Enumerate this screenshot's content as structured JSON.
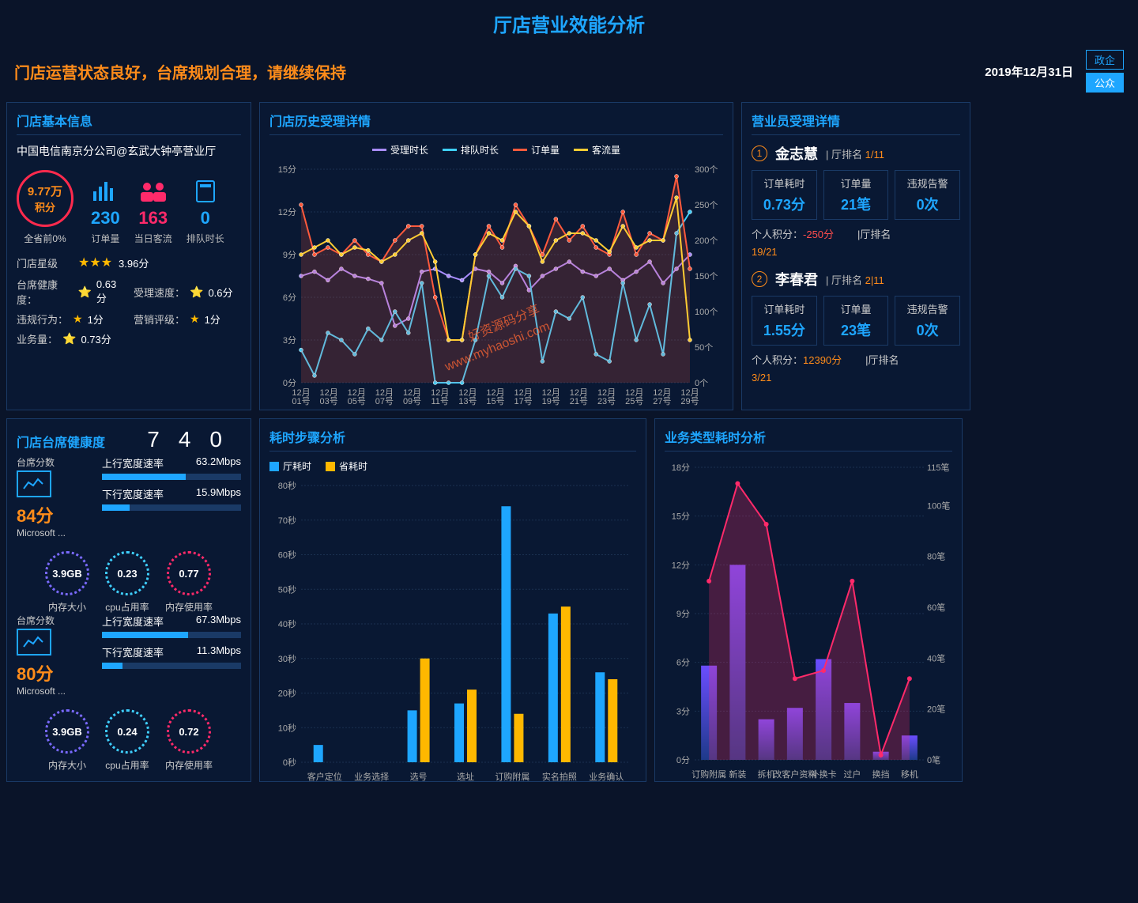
{
  "header": {
    "title": "厅店营业效能分析"
  },
  "subheader": {
    "status": "门店运营状态良好，台席规划合理，请继续保持",
    "date": "2019年12月31日",
    "buttons": {
      "zhengqi": "政企",
      "gongzhong": "公众"
    }
  },
  "storeInfo": {
    "title": "门店基本信息",
    "name": "中国电信南京分公司@玄武大钟亭营业厅",
    "scoreCircle": {
      "value": "9.77万",
      "label": "积分"
    },
    "provincialRank": "全省前0%",
    "metrics": [
      {
        "value": "230",
        "label": "订单量",
        "color": "#1ea6ff"
      },
      {
        "value": "163",
        "label": "当日客流",
        "color": "#ff2a6a"
      },
      {
        "value": "0",
        "label": "排队时长",
        "color": "#1ea6ff"
      }
    ],
    "starRow": {
      "label": "门店星级",
      "stars": 3,
      "score": "3.96分"
    },
    "details": [
      {
        "label": "台席健康度：",
        "icon": "half-star",
        "value": "0.63分"
      },
      {
        "label": "受理速度：",
        "icon": "half-star",
        "value": "0.6分"
      },
      {
        "label": "违规行为：",
        "icon": "star",
        "value": "1分"
      },
      {
        "label": "营销评级：",
        "icon": "star",
        "value": "1分"
      },
      {
        "label": "业务量：",
        "icon": "half-star",
        "value": "0.73分"
      }
    ]
  },
  "historyChart": {
    "title": "门店历史受理详情",
    "legend": [
      {
        "name": "受理时长",
        "color": "#a98cff"
      },
      {
        "name": "排队时长",
        "color": "#3fd0ff"
      },
      {
        "name": "订单量",
        "color": "#ff5a3c"
      },
      {
        "name": "客流量",
        "color": "#ffcc33"
      }
    ],
    "yLeft": {
      "min": 0,
      "max": 15,
      "step": 3,
      "unit": "分"
    },
    "yRight": {
      "min": 0,
      "max": 300,
      "step": 50,
      "unit": "个"
    },
    "xLabels": [
      "12月01号",
      "12月03号",
      "12月05号",
      "12月07号",
      "12月09号",
      "12月11号",
      "12月13号",
      "12月15号",
      "12月17号",
      "12月19号",
      "12月21号",
      "12月23号",
      "12月25号",
      "12月27号",
      "12月29号"
    ],
    "series": {
      "受理时长": [
        7.5,
        7.8,
        7.2,
        8,
        7.5,
        7.3,
        7,
        4,
        4.5,
        7.8,
        8,
        7.5,
        7.2,
        8,
        7.8,
        7,
        8.2,
        6.5,
        7.5,
        8,
        8.5,
        7.8,
        7.5,
        8,
        7.2,
        7.8,
        8.5,
        7,
        8,
        9
      ],
      "排队时长": [
        2.3,
        0.5,
        3.5,
        3,
        2,
        3.8,
        3,
        5,
        3.5,
        7,
        0,
        0,
        0,
        3,
        7.5,
        6,
        8,
        7.5,
        1.5,
        5,
        4.5,
        6,
        2,
        1.5,
        7,
        3,
        5.5,
        2,
        10.5,
        12
      ],
      "订单量": [
        12.5,
        9,
        9.5,
        9,
        10,
        9,
        8.5,
        10,
        11,
        11,
        6,
        3,
        3,
        9,
        11,
        9.5,
        12.5,
        11,
        9,
        11.5,
        10,
        11,
        9.5,
        9,
        12,
        9,
        10.5,
        10,
        14.5,
        8
      ],
      "客流量": [
        9,
        9.5,
        10,
        9,
        9.5,
        9.3,
        8.5,
        9,
        10,
        10.5,
        8.5,
        3,
        3,
        9,
        10.5,
        10,
        12,
        11,
        8.5,
        10,
        10.5,
        10.5,
        10,
        9.2,
        11,
        9.5,
        10,
        10,
        13,
        3
      ]
    }
  },
  "employees": {
    "title": "营业员受理详情",
    "list": [
      {
        "rank": 1,
        "name": "金志慧",
        "rankLabel": "厅排名",
        "rankVal": "1/11",
        "stats": [
          {
            "label": "订单耗时",
            "value": "0.73分"
          },
          {
            "label": "订单量",
            "value": "21笔"
          },
          {
            "label": "违规告警",
            "value": "0次"
          }
        ],
        "points": {
          "label": "个人积分：",
          "value": "-250分",
          "neg": true
        },
        "rank2": {
          "label": "|厅排名",
          "value": "19/21"
        }
      },
      {
        "rank": 2,
        "name": "李春君",
        "rankLabel": "厅排名",
        "rankVal": "2|11",
        "stats": [
          {
            "label": "订单耗时",
            "value": "1.55分"
          },
          {
            "label": "订单量",
            "value": "23笔"
          },
          {
            "label": "违规告警",
            "value": "0次"
          }
        ],
        "points": {
          "label": "个人积分：",
          "value": "12390分",
          "neg": false
        },
        "rank2": {
          "label": "|厅排名",
          "value": "3/21"
        }
      }
    ]
  },
  "seatHealth": {
    "title": "门店台席健康度",
    "bigNumbers": "740",
    "cards": [
      {
        "scoreLabel": "台席分数",
        "score": "84分",
        "device": "Microsoft ...",
        "up": {
          "label": "上行宽度速率",
          "value": "63.2Mbps",
          "pct": 60
        },
        "down": {
          "label": "下行宽度速率",
          "value": "15.9Mbps",
          "pct": 20
        },
        "gauges": [
          {
            "value": "3.9GB",
            "label": "内存大小",
            "color": "#7a6aff"
          },
          {
            "value": "0.23",
            "label": "cpu占用率",
            "color": "#3fd0ff"
          },
          {
            "value": "0.77",
            "label": "内存使用率",
            "color": "#ff2a6a"
          }
        ]
      },
      {
        "scoreLabel": "台席分数",
        "score": "80分",
        "device": "Microsoft ...",
        "up": {
          "label": "上行宽度速率",
          "value": "67.3Mbps",
          "pct": 62
        },
        "down": {
          "label": "下行宽度速率",
          "value": "11.3Mbps",
          "pct": 15
        },
        "gauges": [
          {
            "value": "3.9GB",
            "label": "内存大小",
            "color": "#7a6aff"
          },
          {
            "value": "0.24",
            "label": "cpu占用率",
            "color": "#3fd0ff"
          },
          {
            "value": "0.72",
            "label": "内存使用率",
            "color": "#ff2a6a"
          }
        ]
      }
    ]
  },
  "stepChart": {
    "title": "耗时步骤分析",
    "legend": [
      {
        "name": "厅耗时",
        "color": "#1ea6ff"
      },
      {
        "name": "省耗时",
        "color": "#ffb800"
      }
    ],
    "yMax": 80,
    "yStep": 10,
    "yUnit": "秒",
    "categories": [
      "客户定位",
      "业务选择",
      "选号",
      "选址",
      "订购附属",
      "实名拍照",
      "业务确认"
    ],
    "series": {
      "厅耗时": [
        5,
        0,
        15,
        17,
        74,
        43,
        26
      ],
      "省耗时": [
        0,
        0,
        30,
        21,
        14,
        45,
        24
      ]
    },
    "barColors": {
      "厅耗时": "#1ea6ff",
      "省耗时": "#ffb800"
    }
  },
  "bizTypeChart": {
    "title": "业务类型耗时分析",
    "yLeft": {
      "max": 18,
      "step": 3,
      "unit": "分"
    },
    "yRight": {
      "max": 115,
      "step": 20,
      "unit": "笔"
    },
    "categories": [
      "订购附属",
      "新装",
      "拆机",
      "改客户资料",
      "补换卡",
      "过户",
      "换挡",
      "移机"
    ],
    "bars": [
      5.8,
      12,
      2.5,
      3.2,
      6.2,
      3.5,
      0.5,
      1.5
    ],
    "line": [
      11,
      17,
      14.5,
      5,
      5.5,
      11,
      0.3,
      5
    ],
    "barGradient": {
      "top": "#6b4dff",
      "bottom": "#1e3a8a"
    },
    "lineColor": "#ff2a6a"
  },
  "watermark": {
    "line1": "好资源码分享",
    "line2": "www.myhaoshi.com"
  }
}
